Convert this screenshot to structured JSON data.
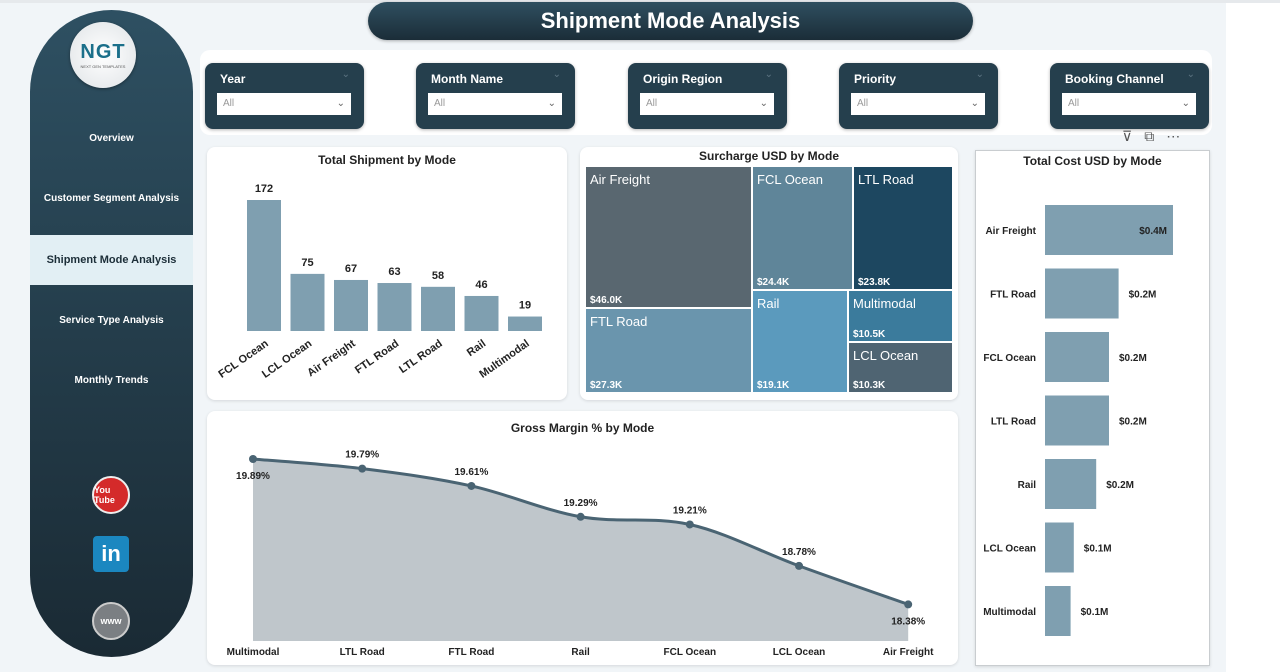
{
  "title": "Shipment Mode Analysis",
  "logo": {
    "text": "NGT",
    "tagline": "NEXT GEN TEMPLATES"
  },
  "sidebar": {
    "items": [
      {
        "label": "Overview"
      },
      {
        "label": "Customer Segment Analysis"
      },
      {
        "label": "Shipment Mode Analysis",
        "selected": true
      },
      {
        "label": "Service Type Analysis"
      },
      {
        "label": "Monthly Trends"
      }
    ],
    "social": [
      {
        "icon": "youtube-icon",
        "label": "You Tube"
      },
      {
        "icon": "linkedin-icon",
        "label": "in"
      },
      {
        "icon": "globe-icon",
        "label": "www"
      }
    ]
  },
  "filters": [
    {
      "label": "Year",
      "value": "All"
    },
    {
      "label": "Month Name",
      "value": "All"
    },
    {
      "label": "Origin Region",
      "value": "All"
    },
    {
      "label": "Priority",
      "value": "All"
    },
    {
      "label": "Booking Channel",
      "value": "All"
    }
  ],
  "visual_header_icons": [
    "filter-icon",
    "focus-mode-icon",
    "more-options-icon"
  ],
  "colors": {
    "bar": "#7f9fb0",
    "dark": "#253f4d",
    "area_fill": "#bfc6cb",
    "area_line": "#4a6473"
  },
  "chart_data": [
    {
      "type": "bar",
      "title": "Total Shipment by Mode",
      "categories": [
        "FCL Ocean",
        "LCL Ocean",
        "Air Freight",
        "FTL Road",
        "LTL Road",
        "Rail",
        "Multimodal"
      ],
      "values": [
        172,
        75,
        67,
        63,
        58,
        46,
        19
      ]
    },
    {
      "type": "treemap",
      "title": "Surcharge USD by Mode",
      "categories": [
        "Air Freight",
        "FTL Road",
        "FCL Ocean",
        "LTL Road",
        "Rail",
        "Multimodal",
        "LCL Ocean"
      ],
      "values": [
        46.0,
        27.3,
        24.4,
        23.8,
        19.1,
        10.5,
        10.3
      ],
      "labels": [
        "$46.0K",
        "$27.3K",
        "$24.4K",
        "$23.8K",
        "$19.1K",
        "$10.5K",
        "$10.3K"
      ],
      "colors": [
        "#596770",
        "#6a95ad",
        "#5f8599",
        "#1d4760",
        "#5b9abd",
        "#3b7b9c",
        "#4f6472"
      ]
    },
    {
      "type": "bar",
      "orientation": "horizontal",
      "title": "Total Cost USD by Mode",
      "categories": [
        "Air Freight",
        "FTL Road",
        "FCL Ocean",
        "LTL Road",
        "Rail",
        "LCL Ocean",
        "Multimodal"
      ],
      "values": [
        0.4,
        0.23,
        0.2,
        0.2,
        0.16,
        0.09,
        0.08
      ],
      "labels": [
        "$0.4M",
        "$0.2M",
        "$0.2M",
        "$0.2M",
        "$0.2M",
        "$0.1M",
        "$0.1M"
      ]
    },
    {
      "type": "area",
      "title": "Gross Margin % by Mode",
      "categories": [
        "Multimodal",
        "LTL Road",
        "FTL Road",
        "Rail",
        "FCL Ocean",
        "LCL Ocean",
        "Air Freight"
      ],
      "values": [
        19.89,
        19.79,
        19.61,
        19.29,
        19.21,
        18.78,
        18.38
      ],
      "labels": [
        "19.89%",
        "19.79%",
        "19.61%",
        "19.29%",
        "19.21%",
        "18.78%",
        "18.38%"
      ],
      "ylim": [
        18.0,
        19.9
      ]
    }
  ]
}
